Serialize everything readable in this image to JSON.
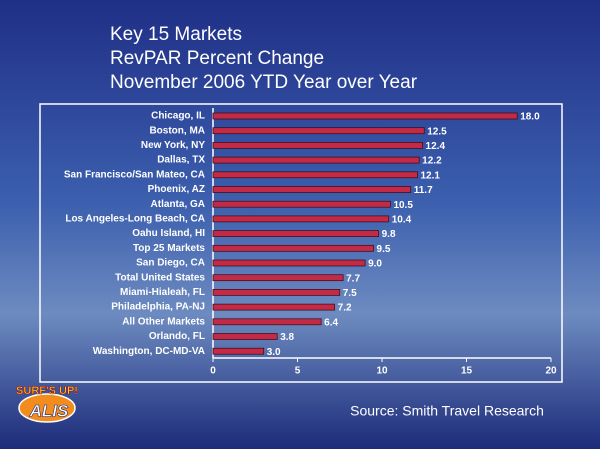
{
  "chart_data": {
    "type": "bar",
    "orientation": "horizontal",
    "title": [
      "Key 15 Markets",
      "RevPAR Percent Change",
      "November 2006 YTD Year over Year"
    ],
    "categories": [
      "Chicago, IL",
      "Boston, MA",
      "New York, NY",
      "Dallas, TX",
      "San Francisco/San Mateo, CA",
      "Phoenix, AZ",
      "Atlanta, GA",
      "Los Angeles-Long Beach, CA",
      "Oahu Island, HI",
      "Top 25 Markets",
      "San Diego, CA",
      "Total United States",
      "Miami-Hialeah, FL",
      "Philadelphia, PA-NJ",
      "All Other Markets",
      "Orlando, FL",
      "Washington, DC-MD-VA"
    ],
    "values": [
      18,
      12.5,
      12.4,
      12.2,
      12.1,
      11.7,
      10.5,
      10.4,
      9.8,
      9.5,
      9,
      7.7,
      7.5,
      7.2,
      6.4,
      3.8,
      3
    ],
    "value_labels": [
      "18.0",
      "12.5",
      "12.4",
      "12.2",
      "12.1",
      "11.7",
      "10.5",
      "10.4",
      "9.8",
      "9.5",
      "9.0",
      "7.7",
      "7.5",
      "7.2",
      "6.4",
      "3.8",
      "3.0"
    ],
    "color": "#c22a45",
    "xlim": [
      0,
      20
    ],
    "xticks": [
      0,
      5,
      10,
      15,
      20
    ],
    "source": "Source: Smith Travel Research",
    "logo": [
      "SURF'S UP!",
      "ALIS"
    ]
  }
}
